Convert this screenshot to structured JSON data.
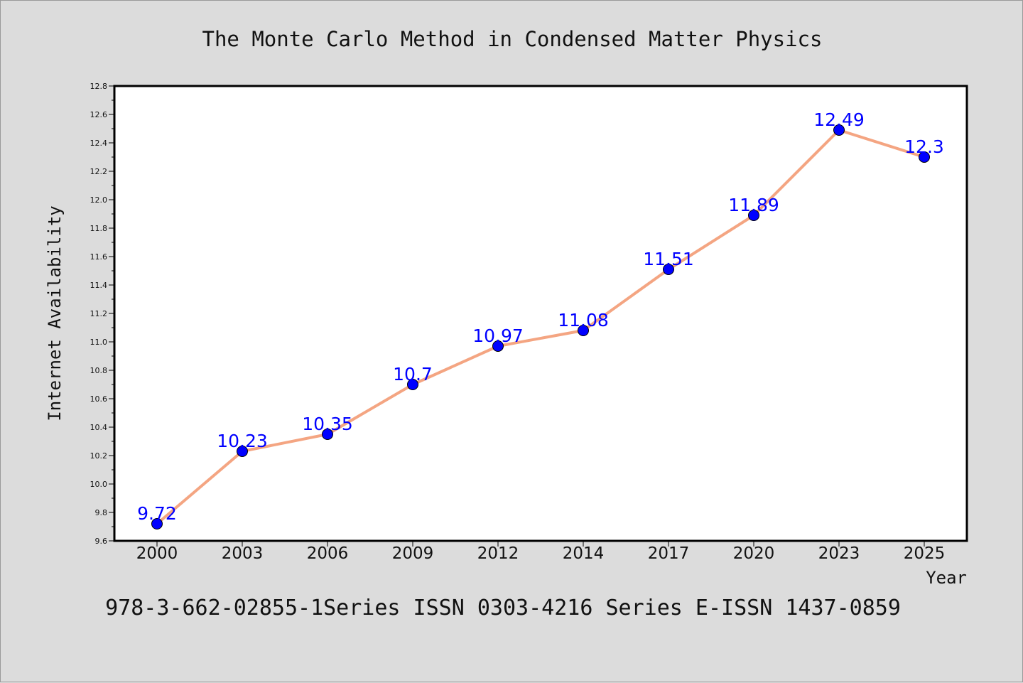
{
  "chart_data": {
    "type": "line",
    "title": "The Monte Carlo Method in Condensed Matter Physics",
    "xlabel": "Year",
    "ylabel": "Internet Availability",
    "categories": [
      "2000",
      "2003",
      "2006",
      "2009",
      "2012",
      "2014",
      "2017",
      "2020",
      "2023",
      "2025"
    ],
    "values": [
      9.72,
      10.23,
      10.35,
      10.7,
      10.97,
      11.08,
      11.51,
      11.89,
      12.49,
      12.3
    ],
    "data_labels": [
      "9.72",
      "10.23",
      "10.35",
      "10.7",
      "10.97",
      "11.08",
      "11.51",
      "11.89",
      "12.49",
      "12.3"
    ],
    "ylim": [
      9.6,
      12.8
    ],
    "yticks": [
      "9.6",
      "9.8",
      "10.0",
      "10.2",
      "10.4",
      "10.6",
      "10.8",
      "11.0",
      "11.2",
      "11.4",
      "11.6",
      "11.8",
      "12.0",
      "12.2",
      "12.4",
      "12.6",
      "12.8"
    ],
    "grid": false,
    "legend": "none",
    "line_color": "#f4a582",
    "marker_color": "#0000ff",
    "label_color": "#0000ff",
    "background_color": "#dcdcdc",
    "plot_background": "#ffffff"
  },
  "footer": {
    "text": "978-3-662-02855-1Series ISSN 0303-4216 Series E-ISSN 1437-0859"
  }
}
